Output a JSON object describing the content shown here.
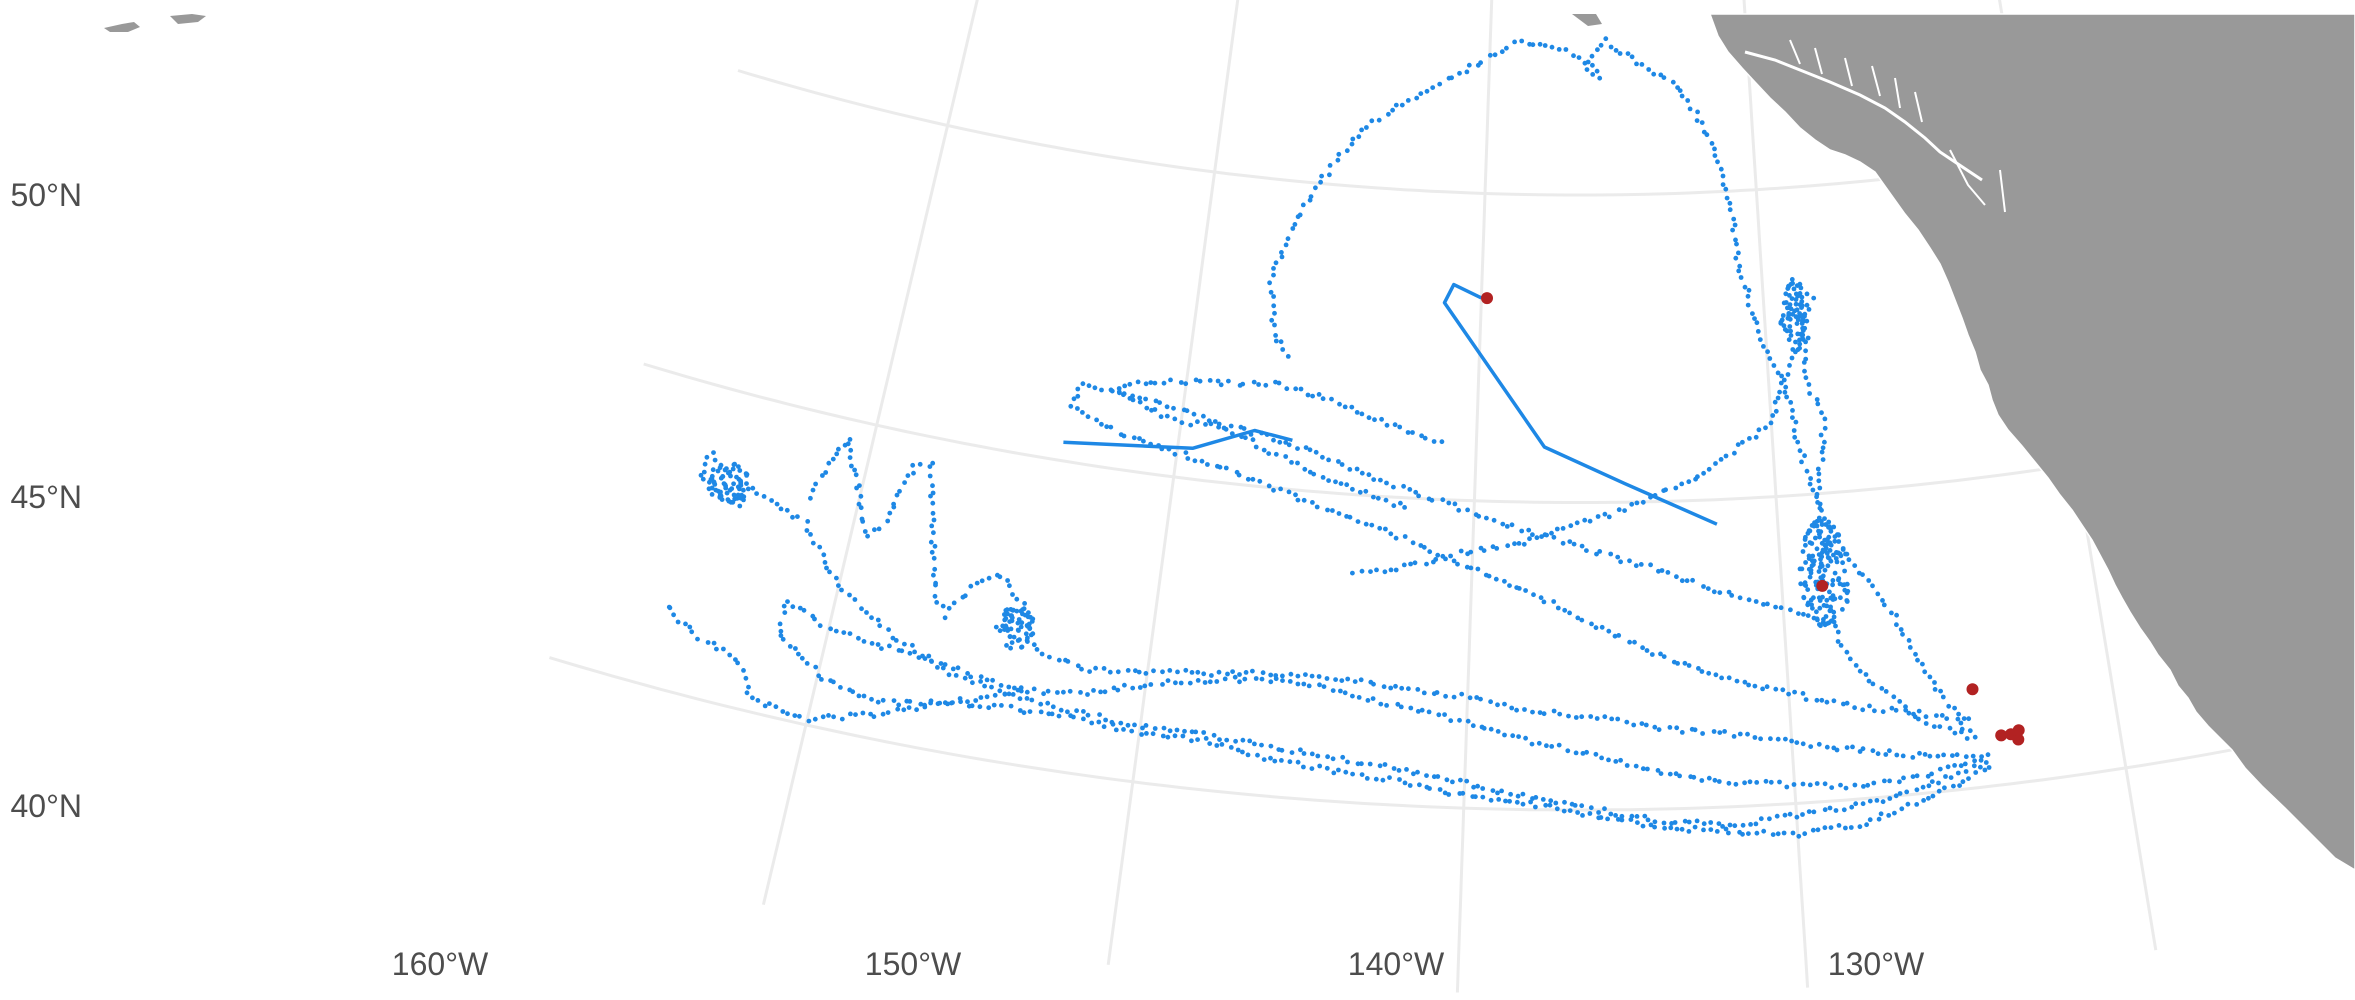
{
  "map": {
    "colors": {
      "background": "#ffffff",
      "graticule": "#ebebeb",
      "land": "#999999",
      "land_outline": "#ffffff",
      "track": "#1e88e5",
      "endpoint": "#b22222"
    },
    "lon_labels": [
      "160°W",
      "150°W",
      "140°W",
      "130°W"
    ],
    "lat_labels": [
      "40°N",
      "45°N",
      "50°N"
    ],
    "extent": {
      "lon_min": -166,
      "lon_max": -118.5,
      "lat_min": 38.5,
      "lat_max": 53.3
    }
  },
  "tracks": [
    {
      "id": "A",
      "points": [
        [
          -124.1,
          40.5
        ],
        [
          -126,
          40.3
        ],
        [
          -128,
          40.2
        ],
        [
          -130,
          40.3
        ],
        [
          -132,
          40.4
        ],
        [
          -134,
          40.6
        ],
        [
          -136,
          40.9
        ],
        [
          -138,
          41.1
        ],
        [
          -140,
          41.4
        ],
        [
          -142,
          41.6
        ],
        [
          -144,
          41.8
        ],
        [
          -146,
          41.9
        ],
        [
          -148,
          41.8
        ],
        [
          -150,
          41.6
        ],
        [
          -152,
          41.3
        ],
        [
          -154,
          41.2
        ],
        [
          -156,
          41.4
        ],
        [
          -158,
          41.5
        ],
        [
          -160,
          41.6
        ],
        [
          -161.5,
          41.9
        ],
        [
          -161.4,
          41.3
        ],
        [
          -159.8,
          40.8
        ],
        [
          -158,
          40.6
        ],
        [
          -156,
          40.8
        ],
        [
          -154.3,
          41.1
        ],
        [
          -153.6,
          41.3
        ]
      ]
    },
    {
      "id": "B",
      "points": [
        [
          -124.2,
          40.4
        ],
        [
          -126,
          40.1
        ],
        [
          -128,
          39.9
        ],
        [
          -130,
          39.8
        ],
        [
          -132,
          39.7
        ],
        [
          -134,
          39.8
        ],
        [
          -136,
          40
        ],
        [
          -138,
          40.2
        ],
        [
          -140,
          40.4
        ],
        [
          -142,
          40.6
        ],
        [
          -144,
          40.7
        ],
        [
          -146,
          40.8
        ],
        [
          -148,
          40.9
        ],
        [
          -150,
          40.9
        ],
        [
          -152,
          41
        ],
        [
          -154,
          41.1
        ],
        [
          -156,
          41.3
        ],
        [
          -158,
          41.7
        ],
        [
          -160,
          42.3
        ],
        [
          -161.5,
          43.2
        ],
        [
          -162.8,
          43.4
        ],
        [
          -164,
          43.6
        ],
        [
          -165,
          43.9
        ],
        [
          -165.2,
          43.5
        ],
        [
          -164.3,
          43.3
        ],
        [
          -163.5,
          43.2
        ]
      ]
    },
    {
      "id": "C",
      "points": [
        [
          -124.1,
          40.3
        ],
        [
          -126,
          39.9
        ],
        [
          -128,
          39.6
        ],
        [
          -130,
          39.5
        ],
        [
          -132,
          39.6
        ],
        [
          -134,
          39.7
        ],
        [
          -136,
          39.9
        ],
        [
          -138,
          40.1
        ],
        [
          -140,
          40.2
        ],
        [
          -142,
          40.4
        ],
        [
          -144,
          40.5
        ],
        [
          -146,
          40.6
        ],
        [
          -148,
          40.8
        ],
        [
          -150,
          40.8
        ],
        [
          -152,
          40.9
        ],
        [
          -154,
          40.9
        ],
        [
          -156,
          40.8
        ],
        [
          -158,
          40.4
        ],
        [
          -160,
          40.1
        ],
        [
          -161.8,
          40.2
        ],
        [
          -162.5,
          40.8
        ],
        [
          -164,
          41
        ],
        [
          -165.2,
          41.4
        ]
      ]
    },
    {
      "id": "D",
      "points": [
        [
          -124.3,
          40.5
        ],
        [
          -126,
          40.6
        ],
        [
          -128,
          40.8
        ],
        [
          -130,
          41
        ],
        [
          -132,
          41.2
        ],
        [
          -134,
          41.3
        ],
        [
          -136,
          41.5
        ],
        [
          -138,
          41.6
        ],
        [
          -140,
          41.8
        ],
        [
          -142,
          41.9
        ],
        [
          -144,
          42
        ],
        [
          -146,
          42
        ],
        [
          -148,
          41.9
        ],
        [
          -150,
          41.8
        ],
        [
          -152,
          41.7
        ],
        [
          -153.5,
          41.9
        ],
        [
          -154.2,
          42.6
        ],
        [
          -155,
          43
        ],
        [
          -155.8,
          42.8
        ],
        [
          -156.5,
          42.2
        ],
        [
          -157,
          42.5
        ],
        [
          -157.6,
          43.8
        ],
        [
          -158,
          44.6
        ],
        [
          -158.5,
          44.5
        ],
        [
          -159,
          43.5
        ],
        [
          -159.5,
          43.2
        ],
        [
          -160,
          43.8
        ],
        [
          -160.8,
          44.7
        ],
        [
          -161.3,
          44.2
        ],
        [
          -161.6,
          43.5
        ]
      ]
    },
    {
      "id": "E",
      "points": [
        [
          -124.5,
          41.1
        ],
        [
          -126,
          41.3
        ],
        [
          -128,
          41.5
        ],
        [
          -130,
          41.8
        ],
        [
          -132,
          42.1
        ],
        [
          -134,
          42.5
        ],
        [
          -136,
          43
        ],
        [
          -138,
          43.5
        ],
        [
          -140,
          43.9
        ],
        [
          -142,
          44.3
        ],
        [
          -144,
          44.6
        ],
        [
          -146,
          44.9
        ],
        [
          -148,
          45.2
        ],
        [
          -150,
          45.4
        ],
        [
          -152,
          45.6
        ],
        [
          -153.8,
          45.9
        ],
        [
          -153.5,
          46.3
        ],
        [
          -152,
          46.2
        ],
        [
          -150,
          46.1
        ],
        [
          -148,
          45.8
        ],
        [
          -146,
          45.4
        ],
        [
          -144,
          45.1
        ],
        [
          -142,
          44.8
        ]
      ]
    },
    {
      "id": "F",
      "points": [
        [
          -128.5,
          42.9
        ],
        [
          -130,
          43.2
        ],
        [
          -132,
          43.5
        ],
        [
          -134,
          43.9
        ],
        [
          -136,
          44.2
        ],
        [
          -138,
          44.5
        ],
        [
          -140,
          44.8
        ],
        [
          -142,
          45.1
        ],
        [
          -144,
          45.4
        ],
        [
          -146,
          45.7
        ],
        [
          -148,
          45.9
        ],
        [
          -150,
          45.9
        ],
        [
          -151.5,
          46.1
        ],
        [
          -152.5,
          46.3
        ],
        [
          -151,
          46.5
        ],
        [
          -149,
          46.6
        ],
        [
          -147,
          46.7
        ],
        [
          -145,
          46.5
        ],
        [
          -143,
          46.2
        ],
        [
          -141,
          45.9
        ]
      ]
    },
    {
      "id": "G",
      "points": [
        [
          -124.4,
          40.8
        ],
        [
          -126,
          41.2
        ],
        [
          -127.5,
          41.9
        ],
        [
          -128.3,
          42.5
        ],
        [
          -128.6,
          43.5
        ],
        [
          -128.7,
          44.5
        ],
        [
          -128.5,
          45.3
        ],
        [
          -128.2,
          46.2
        ],
        [
          -128.8,
          47
        ],
        [
          -128.5,
          47.8
        ],
        [
          -128.9,
          48.5
        ],
        [
          -128.3,
          48.2
        ],
        [
          -128.9,
          47.5
        ],
        [
          -129.5,
          46.8
        ],
        [
          -130,
          46.2
        ],
        [
          -131,
          45.9
        ],
        [
          -132.5,
          45.4
        ],
        [
          -134,
          45.1
        ],
        [
          -135.5,
          44.8
        ],
        [
          -137,
          44.6
        ],
        [
          -138.5,
          44.3
        ],
        [
          -140,
          44.2
        ],
        [
          -142,
          43.9
        ],
        [
          -144,
          43.7
        ]
      ]
    },
    {
      "id": "H",
      "points": [
        [
          -124.6,
          40.9
        ],
        [
          -125.5,
          41.8
        ],
        [
          -126.5,
          42.9
        ],
        [
          -127.5,
          43.7
        ],
        [
          -128.3,
          44.4
        ],
        [
          -129,
          45.5
        ],
        [
          -129.5,
          46.8
        ],
        [
          -130.3,
          47.8
        ],
        [
          -130.8,
          48.8
        ],
        [
          -131,
          49.8
        ],
        [
          -131.3,
          50.5
        ],
        [
          -132.1,
          51.3
        ],
        [
          -133,
          51.8
        ],
        [
          -134.5,
          52.2
        ],
        [
          -135.5,
          52.5
        ],
        [
          -136.2,
          52.2
        ],
        [
          -135.8,
          51.9
        ],
        [
          -136.8,
          52.3
        ],
        [
          -138.8,
          52.5
        ],
        [
          -140.5,
          52.1
        ],
        [
          -142.5,
          51.6
        ],
        [
          -144.5,
          51
        ],
        [
          -146,
          50.1
        ],
        [
          -147,
          49.2
        ],
        [
          -147.5,
          48.3
        ],
        [
          -147.2,
          47.5
        ],
        [
          -146.5,
          47.1
        ]
      ]
    }
  ],
  "straight_segments": [
    {
      "id": "S1",
      "points": [
        [
          -153.8,
          45.3
        ],
        [
          -149.5,
          45.5
        ],
        [
          -147.5,
          45.9
        ],
        [
          -146.2,
          45.8
        ]
      ]
    },
    {
      "id": "S2",
      "points": [
        [
          -140,
          48.3
        ],
        [
          -141,
          48.5
        ],
        [
          -141.3,
          48.2
        ],
        [
          -137.7,
          45.9
        ],
        [
          -135,
          45.3
        ],
        [
          -132,
          44.6
        ]
      ]
    }
  ],
  "jitter_clusters": [
    {
      "center": [
        -128.6,
        43.7
      ],
      "radius": [
        0.8,
        0.9
      ],
      "count": 140
    },
    {
      "center": [
        -129,
        47.9
      ],
      "radius": [
        0.45,
        0.55
      ],
      "count": 60
    },
    {
      "center": [
        -164.2,
        43.5
      ],
      "radius": [
        0.7,
        0.35
      ],
      "count": 60
    },
    {
      "center": [
        -154.3,
        42.2
      ],
      "radius": [
        0.6,
        0.35
      ],
      "count": 55
    }
  ],
  "endpoints": [
    [
      -139.8,
      48.3
    ],
    [
      -128.7,
      43.5
    ],
    [
      -124.3,
      41.6
    ],
    [
      -123.6,
      40.8
    ],
    [
      -123.3,
      40.8
    ],
    [
      -123.1,
      40.7
    ],
    [
      -123.05,
      40.85
    ]
  ]
}
